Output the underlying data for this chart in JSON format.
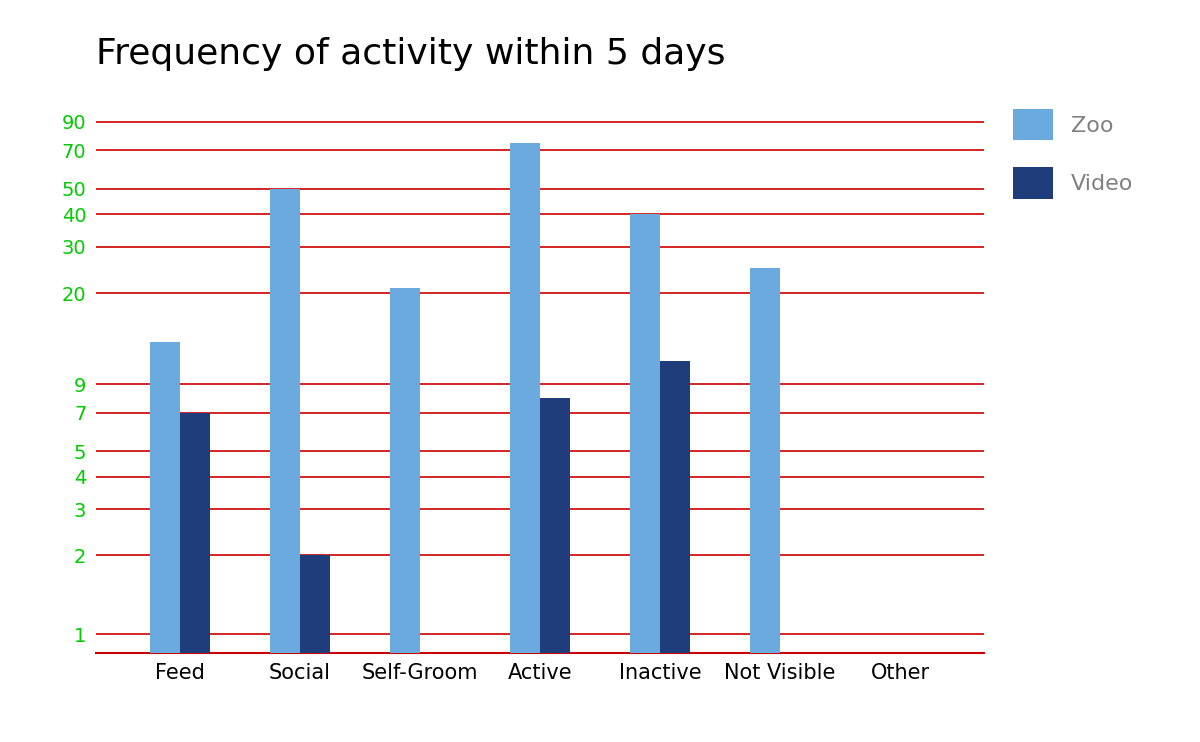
{
  "title": "Frequency of activity within 5 days",
  "title_fontsize": 26,
  "categories": [
    "Feed",
    "Social",
    "Self-Groom",
    "Active",
    "Inactive",
    "Not Visible",
    "Other"
  ],
  "zoo_values": [
    13,
    50,
    21,
    75,
    40,
    25,
    null
  ],
  "video_values": [
    7,
    2,
    null,
    8,
    11,
    null,
    null
  ],
  "zoo_color": "#6aaade",
  "video_color": "#1f3d7a",
  "grid_color": "#cc0000",
  "tick_color": "#00cc00",
  "background_color": "#ffffff",
  "legend_labels": [
    "Zoo",
    "Video"
  ],
  "legend_text_color": "#808080",
  "yticks": [
    1,
    2,
    3,
    4,
    5,
    7,
    9,
    20,
    30,
    40,
    50,
    70,
    90
  ],
  "bar_width": 0.25,
  "xtick_fontsize": 15,
  "ytick_fontsize": 14
}
